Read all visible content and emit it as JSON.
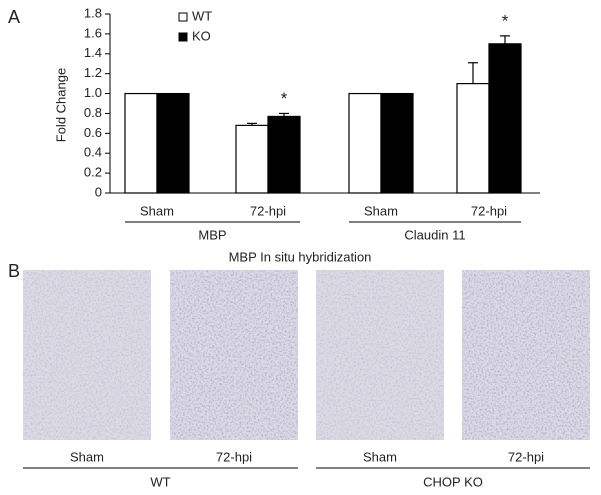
{
  "chart_data": {
    "type": "bar",
    "panel_label": "A",
    "y_label": "Fold Change",
    "categories": [
      "Sham",
      "72-hpi",
      "Sham",
      "72-hpi"
    ],
    "groups": [
      "MBP",
      "Claudin 11"
    ],
    "series": [
      {
        "name": "WT",
        "color": "#ffffff",
        "values": [
          1.0,
          0.68,
          1.0,
          1.1
        ],
        "errors": [
          null,
          0.02,
          null,
          0.21
        ],
        "markers": [
          null,
          null,
          null,
          null
        ]
      },
      {
        "name": "KO",
        "color": "#000000",
        "values": [
          1.0,
          0.77,
          1.0,
          1.5
        ],
        "errors": [
          null,
          0.03,
          null,
          0.08
        ],
        "markers": [
          null,
          "*",
          null,
          "*"
        ]
      }
    ],
    "ylim": [
      0,
      1.8
    ],
    "yticks": [
      0,
      0.2,
      0.4,
      0.6,
      0.8,
      {
        "value": 1,
        "label": "1.0"
      },
      1.2,
      1.4,
      1.6,
      1.8
    ],
    "grid": false
  },
  "panel_b": {
    "label": "B",
    "title": "MBP In situ hybridization",
    "images": [
      "Sham",
      "72-hpi",
      "Sham",
      "72-hpi"
    ],
    "groups": [
      "WT",
      "CHOP KO"
    ]
  }
}
